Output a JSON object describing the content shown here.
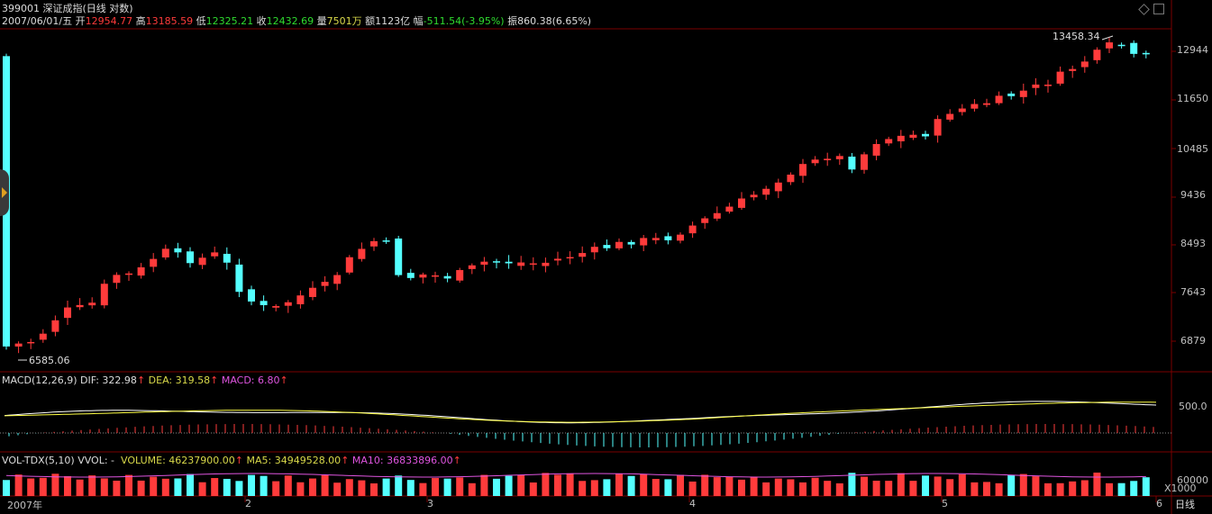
{
  "header": {
    "code": "399001",
    "name": "深证成指(日线 对数)",
    "date": "2007/06/01/五",
    "open_label": "开",
    "open": "12954.77",
    "high_label": "高",
    "high": "13185.59",
    "low_label": "低",
    "low": "12325.21",
    "close_label": "收",
    "close": "12432.69",
    "vol_label": "量",
    "vol": "7501万",
    "amt_label": "额",
    "amt": "1123亿",
    "chg_label": "幅",
    "chg": "-511.54(-3.95%)",
    "amp_label": "振",
    "amp": "860.38(6.65%)"
  },
  "price_axis": [
    "12944",
    "11650",
    "10485",
    "9436",
    "8493",
    "7643",
    "6879"
  ],
  "annotations": {
    "max": "13458.34",
    "min": "6585.06"
  },
  "macd": {
    "title": "MACD(12,26,9)",
    "dif_label": "DIF: 322.98",
    "dea_label": "DEA: 319.58",
    "macd_label": "MACD: 6.80",
    "axis": "500.0"
  },
  "vol": {
    "title": "VOL-TDX(5,10)",
    "vvol": "VVOL: -",
    "volume": "VOLUME: 46237900.00",
    "ma5": "MA5: 34949528.00",
    "ma10": "MA10: 36833896.00",
    "axis": "60000",
    "unit": "X1000"
  },
  "time_axis": {
    "year": "2007年",
    "m2": "2",
    "m3": "3",
    "m4": "4",
    "m5": "5",
    "m6": "6"
  },
  "period": "日线",
  "colors": {
    "up": "#ff3b3b",
    "down": "#54ffff",
    "bg": "#000000",
    "grid": "#7a0000"
  }
}
